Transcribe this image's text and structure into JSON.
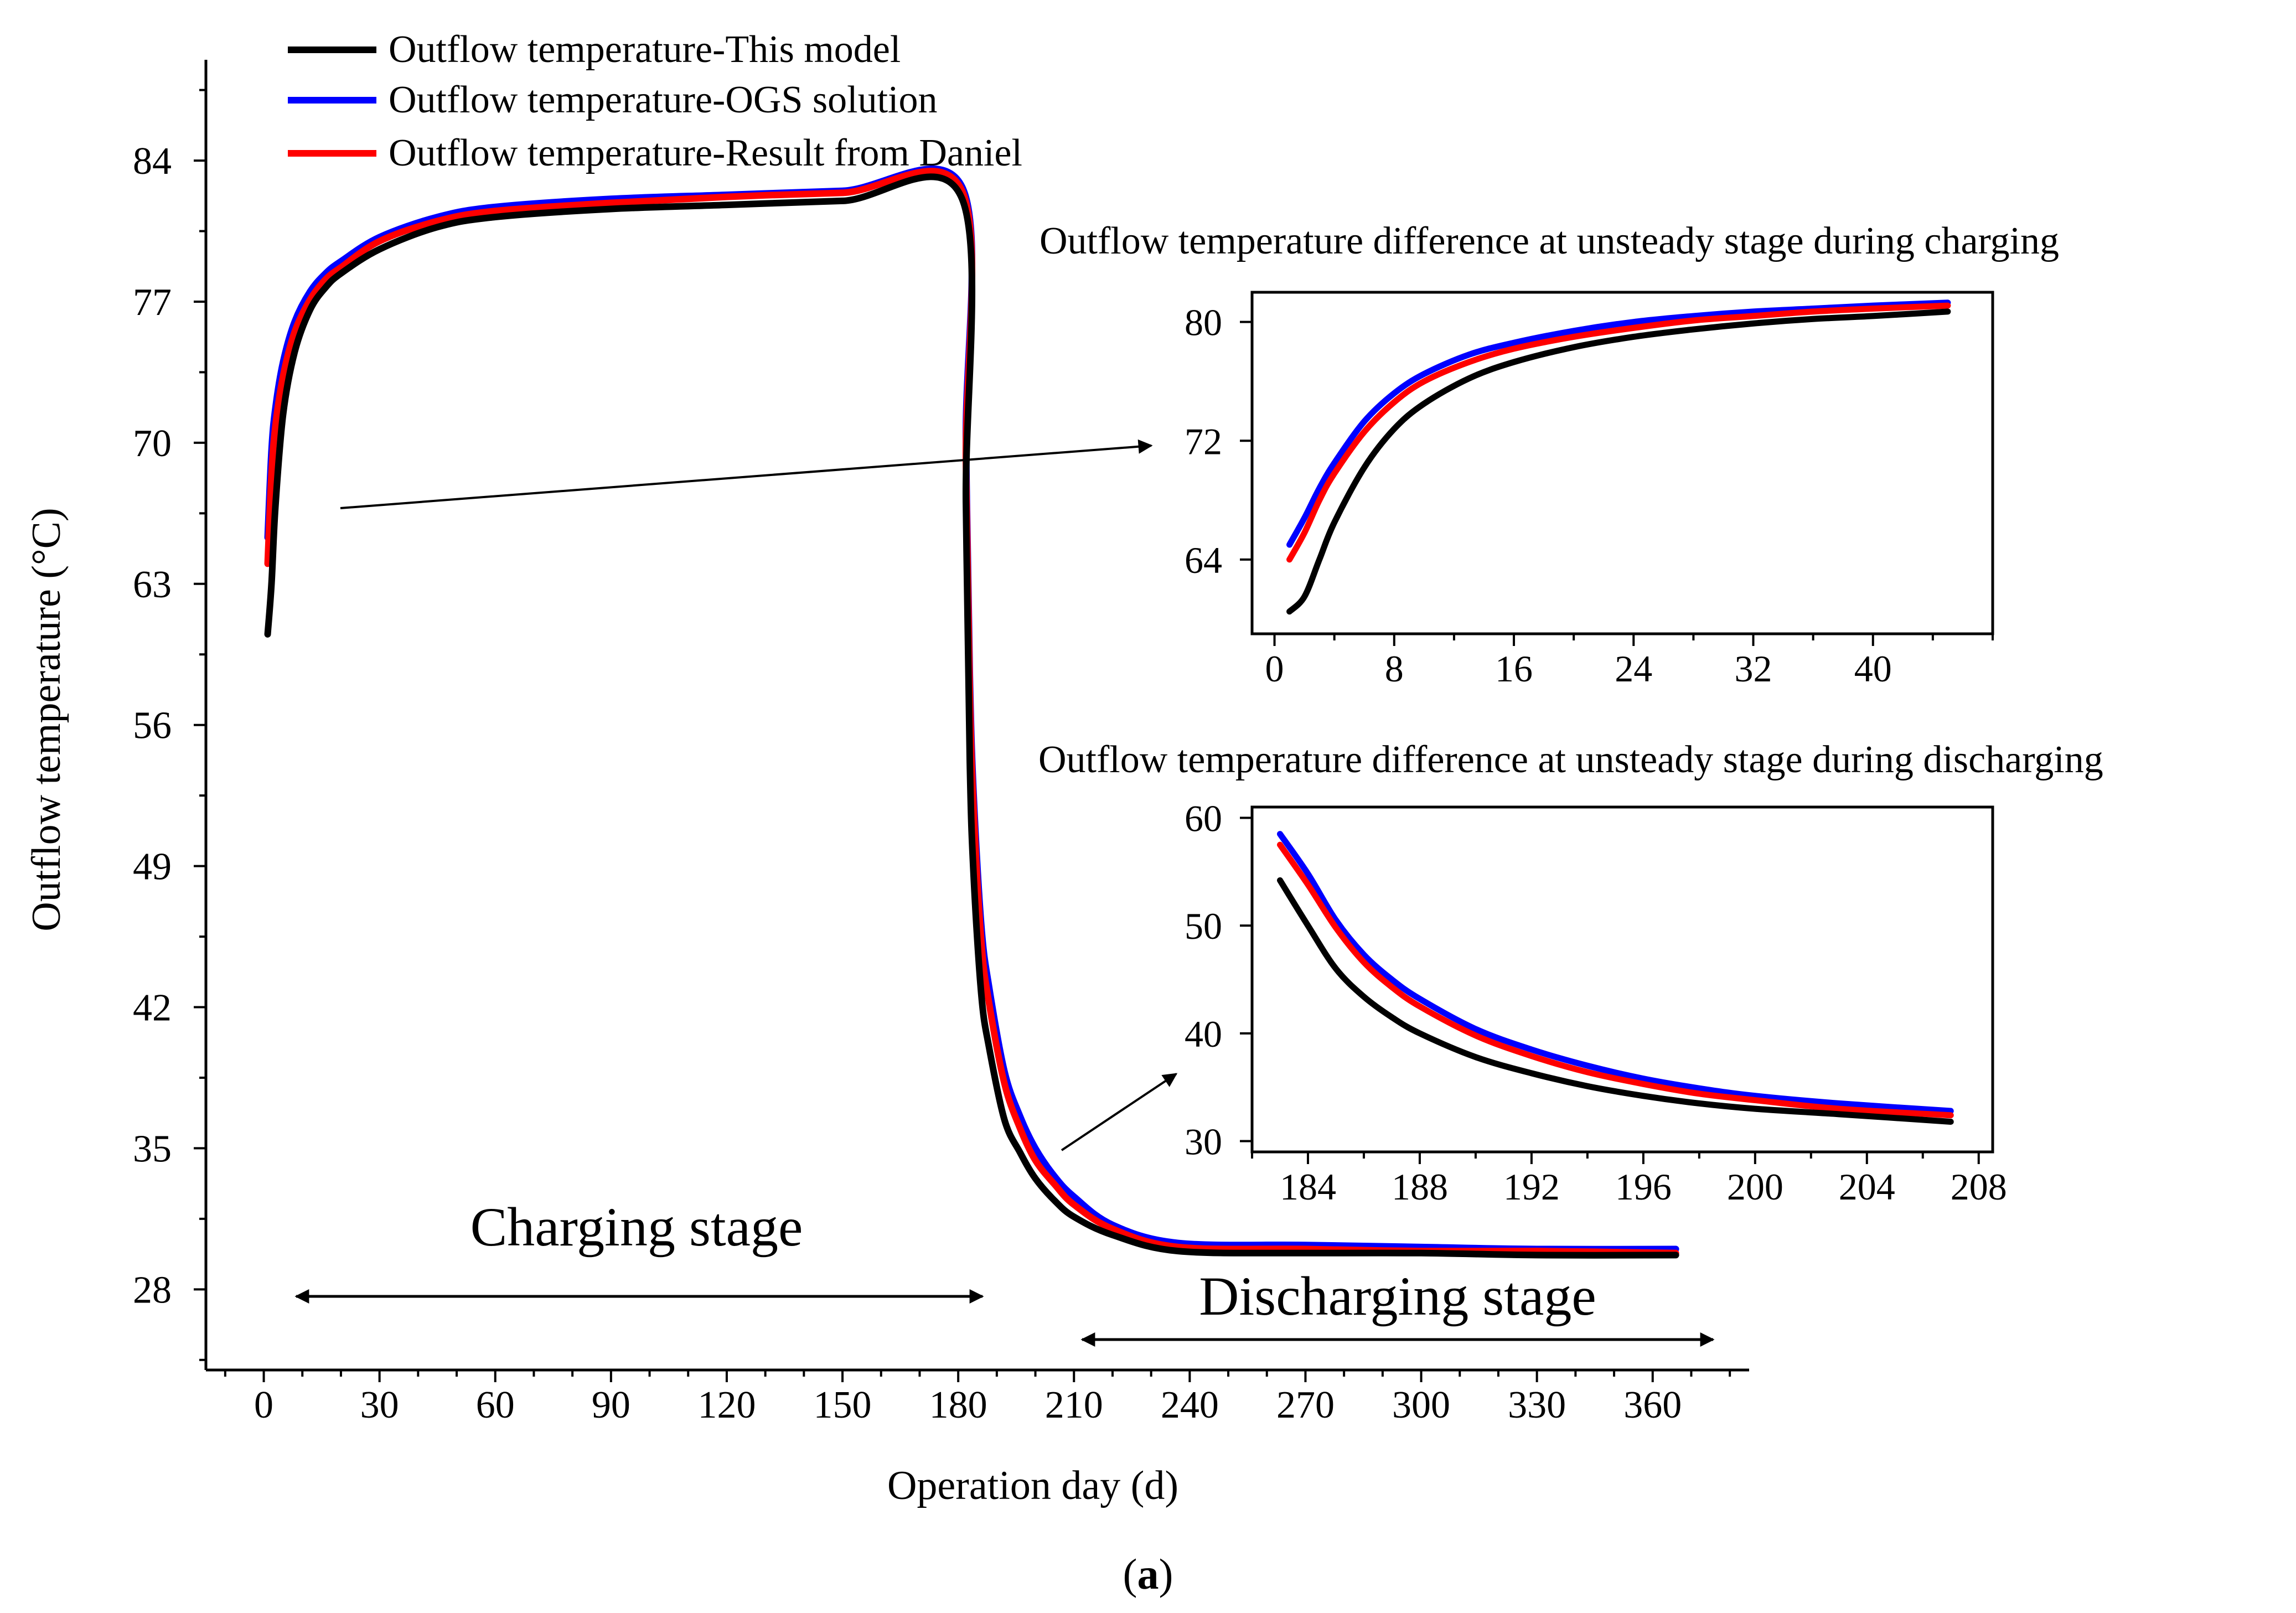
{
  "figure_label": "(a)",
  "figure_label_parts": {
    "open": "(",
    "letter": "a",
    "close": ")"
  },
  "chart_data": [
    {
      "id": "main",
      "type": "line",
      "title": "",
      "xlabel": "Operation day (d)",
      "ylabel": "Outflow temperature (°C)",
      "xlim": [
        -15,
        385
      ],
      "ylim": [
        24,
        89
      ],
      "xticks": [
        0,
        30,
        60,
        90,
        120,
        150,
        180,
        210,
        240,
        270,
        300,
        330,
        360
      ],
      "yticks": [
        28,
        35,
        42,
        49,
        56,
        63,
        70,
        77,
        84
      ],
      "grid": false,
      "legend": {
        "position": "top-left",
        "entries": [
          {
            "label": "Outflow temperature-This model",
            "color": "#000000"
          },
          {
            "label": "Outflow temperature-OGS solution",
            "color": "#0000ff"
          },
          {
            "label": "Outflow temperature-Result from Daniel",
            "color": "#ff0000"
          }
        ]
      },
      "series": [
        {
          "name": "Outflow temperature-OGS solution",
          "color": "#0000ff",
          "x": [
            1,
            2,
            3,
            5,
            8,
            12,
            16,
            20,
            30,
            45,
            60,
            90,
            120,
            150,
            181,
            182,
            183,
            184,
            186,
            188,
            192,
            196,
            200,
            205,
            210,
            220,
            237,
            270,
            300,
            330,
            366
          ],
          "y": [
            65.3,
            69.6,
            71.7,
            74.0,
            76.0,
            77.5,
            78.4,
            79.0,
            80.2,
            81.2,
            81.7,
            82.1,
            82.3,
            82.5,
            82.7,
            70.0,
            58.5,
            52.5,
            46.0,
            43.0,
            38.8,
            36.6,
            35.0,
            33.6,
            32.6,
            31.2,
            30.3,
            30.2,
            30.1,
            30.0,
            30.0
          ]
        },
        {
          "name": "Outflow temperature-Result from Daniel",
          "color": "#ff0000",
          "x": [
            1,
            2,
            3,
            5,
            8,
            12,
            16,
            20,
            30,
            45,
            60,
            90,
            120,
            150,
            181,
            182,
            183,
            184,
            186,
            188,
            192,
            196,
            200,
            205,
            210,
            220,
            237,
            270,
            300,
            330,
            366
          ],
          "y": [
            64.0,
            68.4,
            70.8,
            73.3,
            75.5,
            77.1,
            78.1,
            78.7,
            80.0,
            81.0,
            81.5,
            81.9,
            82.2,
            82.4,
            82.5,
            69.0,
            57.6,
            51.8,
            45.2,
            42.2,
            38.2,
            36.0,
            34.4,
            33.2,
            32.2,
            31.0,
            30.1,
            30.0,
            29.9,
            29.9,
            29.8
          ]
        },
        {
          "name": "Outflow temperature-This model",
          "color": "#000000",
          "x": [
            1,
            2,
            3,
            5,
            8,
            12,
            16,
            20,
            30,
            45,
            60,
            90,
            120,
            150,
            181,
            182,
            183,
            184,
            186,
            188,
            192,
            196,
            200,
            205,
            210,
            220,
            237,
            270,
            300,
            330,
            366
          ],
          "y": [
            60.5,
            63.0,
            66.8,
            71.4,
            74.5,
            76.6,
            77.7,
            78.4,
            79.6,
            80.7,
            81.2,
            81.6,
            81.8,
            82.0,
            82.1,
            67.0,
            54.2,
            48.5,
            42.6,
            40.0,
            36.4,
            34.8,
            33.5,
            32.4,
            31.6,
            30.7,
            29.9,
            29.8,
            29.8,
            29.7,
            29.7
          ]
        }
      ],
      "annotations": [
        {
          "text": "Charging stage",
          "type": "double-arrow",
          "x_range": [
            2,
            180
          ],
          "y": 26.8
        },
        {
          "text": "Discharging stage",
          "type": "double-arrow",
          "x_range": [
            210,
            375
          ],
          "y": 25.7
        }
      ]
    },
    {
      "id": "inset_charging",
      "type": "line",
      "title": "Outflow temperature difference at unsteady stage during charging",
      "xlabel": "",
      "ylabel": "",
      "xlim": [
        -1.5,
        48
      ],
      "ylim": [
        59,
        82
      ],
      "xticks": [
        0,
        8,
        16,
        24,
        32,
        40
      ],
      "yticks": [
        64,
        72,
        80
      ],
      "series": [
        {
          "name": "Outflow temperature-OGS solution",
          "color": "#0000ff",
          "x": [
            1,
            2,
            3,
            4,
            6,
            8,
            10,
            13,
            16,
            20,
            24,
            28,
            32,
            36,
            40,
            45
          ],
          "y": [
            65.0,
            66.8,
            68.8,
            70.5,
            73.3,
            75.2,
            76.5,
            77.8,
            78.6,
            79.4,
            80.0,
            80.4,
            80.7,
            80.9,
            81.1,
            81.3
          ]
        },
        {
          "name": "Outflow temperature-Result from Daniel",
          "color": "#ff0000",
          "x": [
            1,
            2,
            3,
            4,
            6,
            8,
            10,
            13,
            16,
            20,
            24,
            28,
            32,
            36,
            40,
            45
          ],
          "y": [
            64.0,
            65.8,
            68.0,
            69.8,
            72.6,
            74.6,
            76.0,
            77.3,
            78.2,
            79.0,
            79.6,
            80.1,
            80.4,
            80.7,
            80.9,
            81.1
          ]
        },
        {
          "name": "Outflow temperature-This model",
          "color": "#000000",
          "x": [
            1,
            2,
            3,
            4,
            6,
            8,
            10,
            13,
            16,
            20,
            24,
            28,
            32,
            36,
            40,
            45
          ],
          "y": [
            60.5,
            61.5,
            64.0,
            66.5,
            70.2,
            72.8,
            74.5,
            76.2,
            77.3,
            78.3,
            79.0,
            79.5,
            79.9,
            80.2,
            80.4,
            80.7
          ]
        }
      ]
    },
    {
      "id": "inset_discharging",
      "type": "line",
      "title": "Outflow temperature difference at unsteady stage during discharging",
      "xlabel": "",
      "ylabel": "",
      "xlim": [
        182,
        208.5
      ],
      "ylim": [
        29,
        61
      ],
      "xticks": [
        184,
        188,
        192,
        196,
        200,
        204,
        208
      ],
      "yticks": [
        30,
        40,
        50,
        60
      ],
      "series": [
        {
          "name": "Outflow temperature-OGS solution",
          "color": "#0000ff",
          "x": [
            183,
            184,
            185,
            186,
            187,
            188,
            190,
            192,
            194,
            196,
            198,
            200,
            203,
            207
          ],
          "y": [
            58.5,
            54.8,
            50.5,
            47.3,
            45.0,
            43.2,
            40.4,
            38.5,
            37.0,
            35.8,
            34.9,
            34.2,
            33.5,
            32.8
          ]
        },
        {
          "name": "Outflow temperature-Result from Daniel",
          "color": "#ff0000",
          "x": [
            183,
            184,
            185,
            186,
            187,
            188,
            190,
            192,
            194,
            196,
            198,
            200,
            203,
            207
          ],
          "y": [
            57.5,
            53.8,
            49.8,
            46.6,
            44.3,
            42.5,
            39.8,
            37.9,
            36.4,
            35.3,
            34.4,
            33.8,
            33.0,
            32.4
          ]
        },
        {
          "name": "Outflow temperature-This model",
          "color": "#000000",
          "x": [
            183,
            184,
            185,
            186,
            187,
            188,
            190,
            192,
            194,
            196,
            198,
            200,
            203,
            207
          ],
          "y": [
            54.2,
            50.0,
            46.0,
            43.4,
            41.5,
            40.0,
            37.8,
            36.3,
            35.1,
            34.2,
            33.5,
            33.0,
            32.5,
            31.8
          ]
        }
      ]
    }
  ]
}
